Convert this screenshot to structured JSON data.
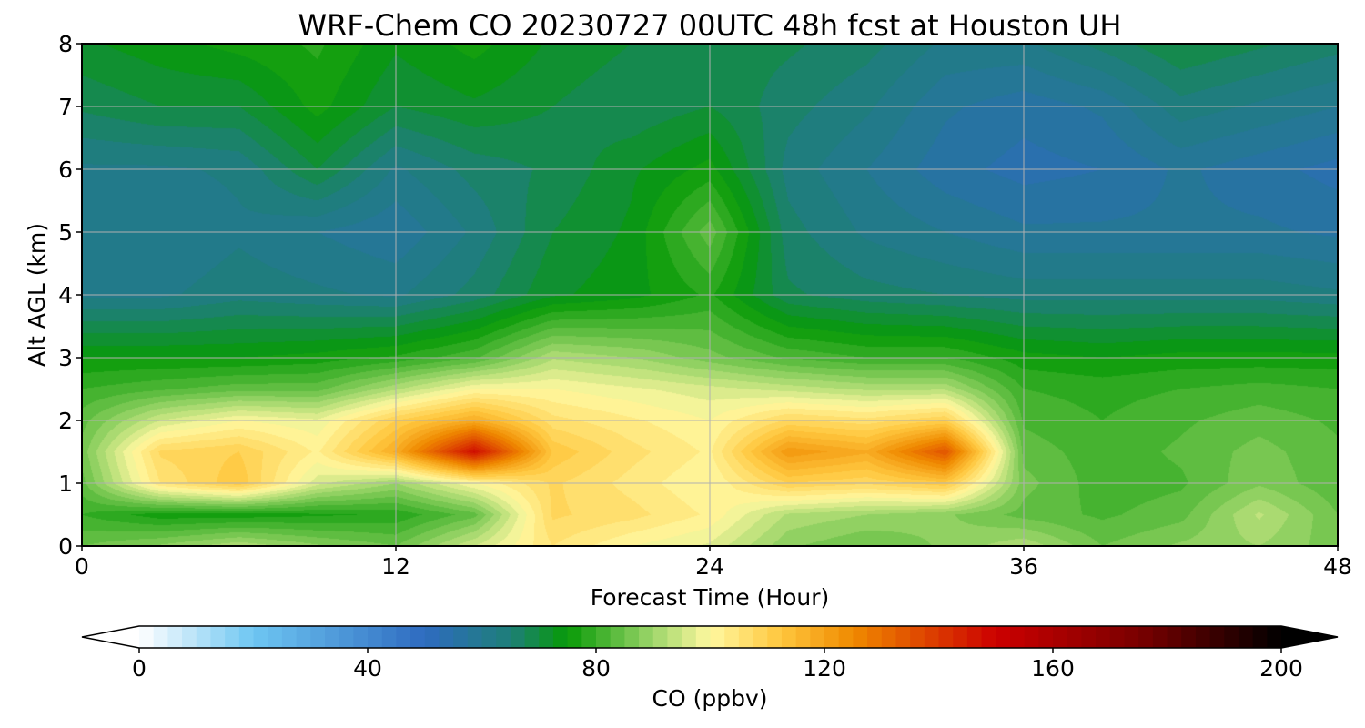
{
  "chart_data": {
    "type": "heatmap",
    "title": "WRF-Chem CO  20230727 00UTC 48h fcst at Houston UH",
    "xlabel": "Forecast Time (Hour)",
    "ylabel": "Alt AGL (km)",
    "xlim": [
      0,
      48
    ],
    "ylim": [
      0,
      8
    ],
    "x_ticks": [
      0,
      12,
      24,
      36,
      48
    ],
    "y_ticks": [
      0,
      1,
      2,
      3,
      4,
      5,
      6,
      7,
      8
    ],
    "grid": true,
    "colorbar": {
      "label": "CO  (ppbv)",
      "range": [
        0,
        200
      ],
      "ticks": [
        0,
        40,
        80,
        120,
        160,
        200
      ],
      "extend": "both",
      "orientation": "horizontal",
      "stops": [
        {
          "v": 0,
          "c": "#ffffff"
        },
        {
          "v": 20,
          "c": "#6ec6f2"
        },
        {
          "v": 50,
          "c": "#2e6bc0"
        },
        {
          "v": 65,
          "c": "#1e7f78"
        },
        {
          "v": 75,
          "c": "#079a07"
        },
        {
          "v": 90,
          "c": "#9ed66a"
        },
        {
          "v": 100,
          "c": "#fff8a0"
        },
        {
          "v": 112,
          "c": "#ffc840"
        },
        {
          "v": 125,
          "c": "#f08a00"
        },
        {
          "v": 150,
          "c": "#cc0000"
        },
        {
          "v": 175,
          "c": "#7a0000"
        },
        {
          "v": 200,
          "c": "#000000"
        }
      ]
    },
    "grid_x": [
      0,
      3,
      6,
      9,
      12,
      15,
      18,
      21,
      24,
      27,
      30,
      33,
      36,
      39,
      42,
      45,
      48
    ],
    "grid_y": [
      0,
      0.5,
      1,
      1.5,
      2,
      2.5,
      3,
      4,
      5,
      6,
      7,
      8
    ],
    "values": [
      [
        85,
        88,
        92,
        88,
        85,
        95,
        105,
        100,
        97,
        88,
        85,
        88,
        92,
        85,
        88,
        90,
        86
      ],
      [
        80,
        76,
        76,
        77,
        78,
        84,
        108,
        106,
        102,
        92,
        90,
        88,
        84,
        82,
        84,
        93,
        85
      ],
      [
        84,
        105,
        112,
        96,
        90,
        100,
        108,
        104,
        100,
        110,
        108,
        112,
        86,
        81,
        82,
        87,
        83
      ],
      [
        86,
        108,
        110,
        102,
        118,
        148,
        112,
        106,
        102,
        122,
        118,
        135,
        84,
        81,
        83,
        86,
        83
      ],
      [
        84,
        95,
        100,
        98,
        110,
        118,
        106,
        103,
        100,
        108,
        106,
        110,
        82,
        80,
        82,
        84,
        82
      ],
      [
        80,
        82,
        84,
        84,
        92,
        100,
        100,
        98,
        96,
        94,
        92,
        92,
        80,
        79,
        80,
        81,
        80
      ],
      [
        75,
        75,
        75,
        76,
        78,
        82,
        92,
        90,
        86,
        82,
        80,
        80,
        76,
        75,
        76,
        76,
        76
      ],
      [
        62,
        62,
        64,
        63,
        62,
        66,
        72,
        74,
        78,
        68,
        66,
        65,
        64,
        64,
        64,
        64,
        63
      ],
      [
        60,
        60,
        62,
        60,
        58,
        63,
        70,
        73,
        84,
        66,
        62,
        60,
        58,
        58,
        58,
        58,
        57
      ],
      [
        62,
        62,
        63,
        70,
        62,
        66,
        68,
        72,
        76,
        64,
        60,
        56,
        54,
        55,
        58,
        56,
        54
      ],
      [
        68,
        70,
        70,
        76,
        70,
        72,
        70,
        68,
        70,
        66,
        63,
        58,
        56,
        58,
        64,
        62,
        60
      ],
      [
        72,
        74,
        76,
        78,
        73,
        76,
        72,
        70,
        69,
        68,
        66,
        62,
        62,
        66,
        70,
        68,
        66
      ]
    ]
  }
}
